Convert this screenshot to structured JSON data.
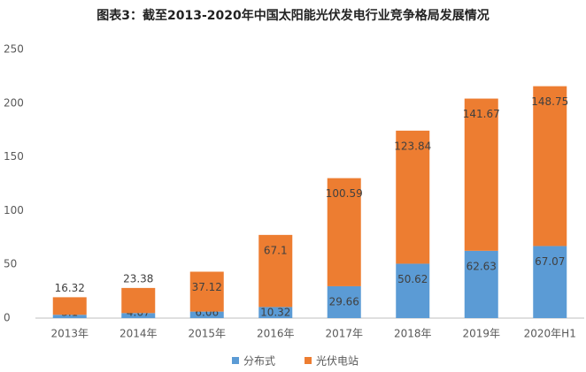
{
  "chart_data": {
    "type": "stacked_bar",
    "title": "图表3：截至2013-2020年中国太阳能光伏发电行业竞争格局发展情况",
    "categories": [
      "2013年",
      "2014年",
      "2015年",
      "2016年",
      "2017年",
      "2018年",
      "2019年",
      "2020年H1"
    ],
    "series": [
      {
        "name": "分布式",
        "color": "#5b9bd5",
        "values": [
          3.1,
          4.67,
          6.06,
          10.32,
          29.66,
          50.62,
          62.63,
          67.07
        ]
      },
      {
        "name": "光伏电站",
        "color": "#ed7d31",
        "values": [
          16.32,
          23.38,
          37.12,
          67.1,
          100.59,
          123.84,
          141.67,
          148.75
        ]
      }
    ],
    "ylim": [
      0,
      250
    ],
    "yticks": [
      0,
      50,
      100,
      150,
      200,
      250
    ],
    "grid": false,
    "legend": "bottom"
  }
}
